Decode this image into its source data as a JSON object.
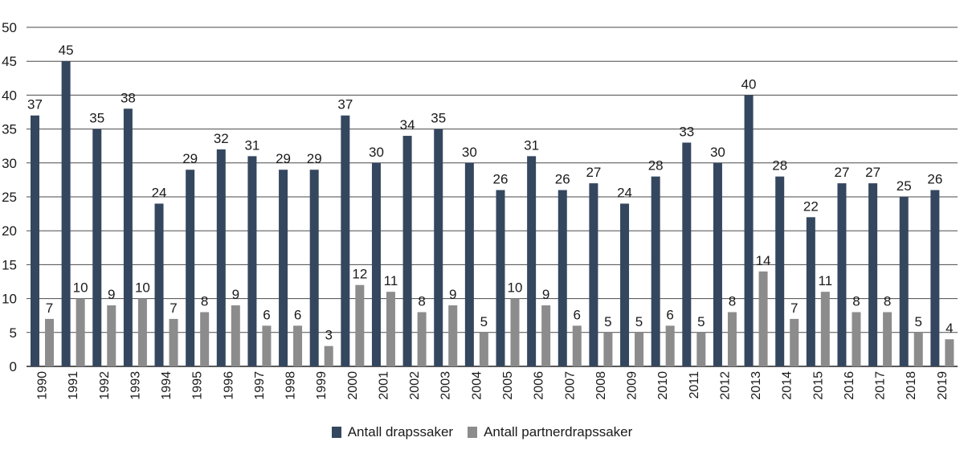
{
  "chart_data": {
    "type": "bar",
    "categories": [
      "1990",
      "1991",
      "1992",
      "1993",
      "1994",
      "1995",
      "1996",
      "1997",
      "1998",
      "1999",
      "2000",
      "2001",
      "2002",
      "2003",
      "2004",
      "2005",
      "2006",
      "2007",
      "2008",
      "2009",
      "2010",
      "2011",
      "2012",
      "2013",
      "2014",
      "2015",
      "2016",
      "2017",
      "2018",
      "2019"
    ],
    "series": [
      {
        "name": "Antall drapssaker",
        "color": "#34475f",
        "values": [
          37,
          45,
          35,
          38,
          24,
          29,
          32,
          31,
          29,
          29,
          37,
          30,
          34,
          35,
          30,
          26,
          31,
          26,
          27,
          24,
          28,
          33,
          30,
          40,
          28,
          22,
          27,
          27,
          25,
          26
        ]
      },
      {
        "name": "Antall partnerdrapssaker",
        "color": "#8c8c8c",
        "values": [
          7,
          10,
          9,
          10,
          7,
          8,
          9,
          6,
          6,
          3,
          12,
          11,
          8,
          9,
          5,
          10,
          9,
          6,
          5,
          5,
          6,
          5,
          8,
          14,
          7,
          11,
          8,
          8,
          5,
          4
        ]
      }
    ],
    "yticks": [
      "0",
      "5",
      "10",
      "15",
      "20",
      "25",
      "30",
      "35",
      "40",
      "45",
      "50"
    ],
    "ylim": [
      0,
      50
    ],
    "grid": true,
    "legend_position": "bottom-center",
    "data_labels": true
  }
}
